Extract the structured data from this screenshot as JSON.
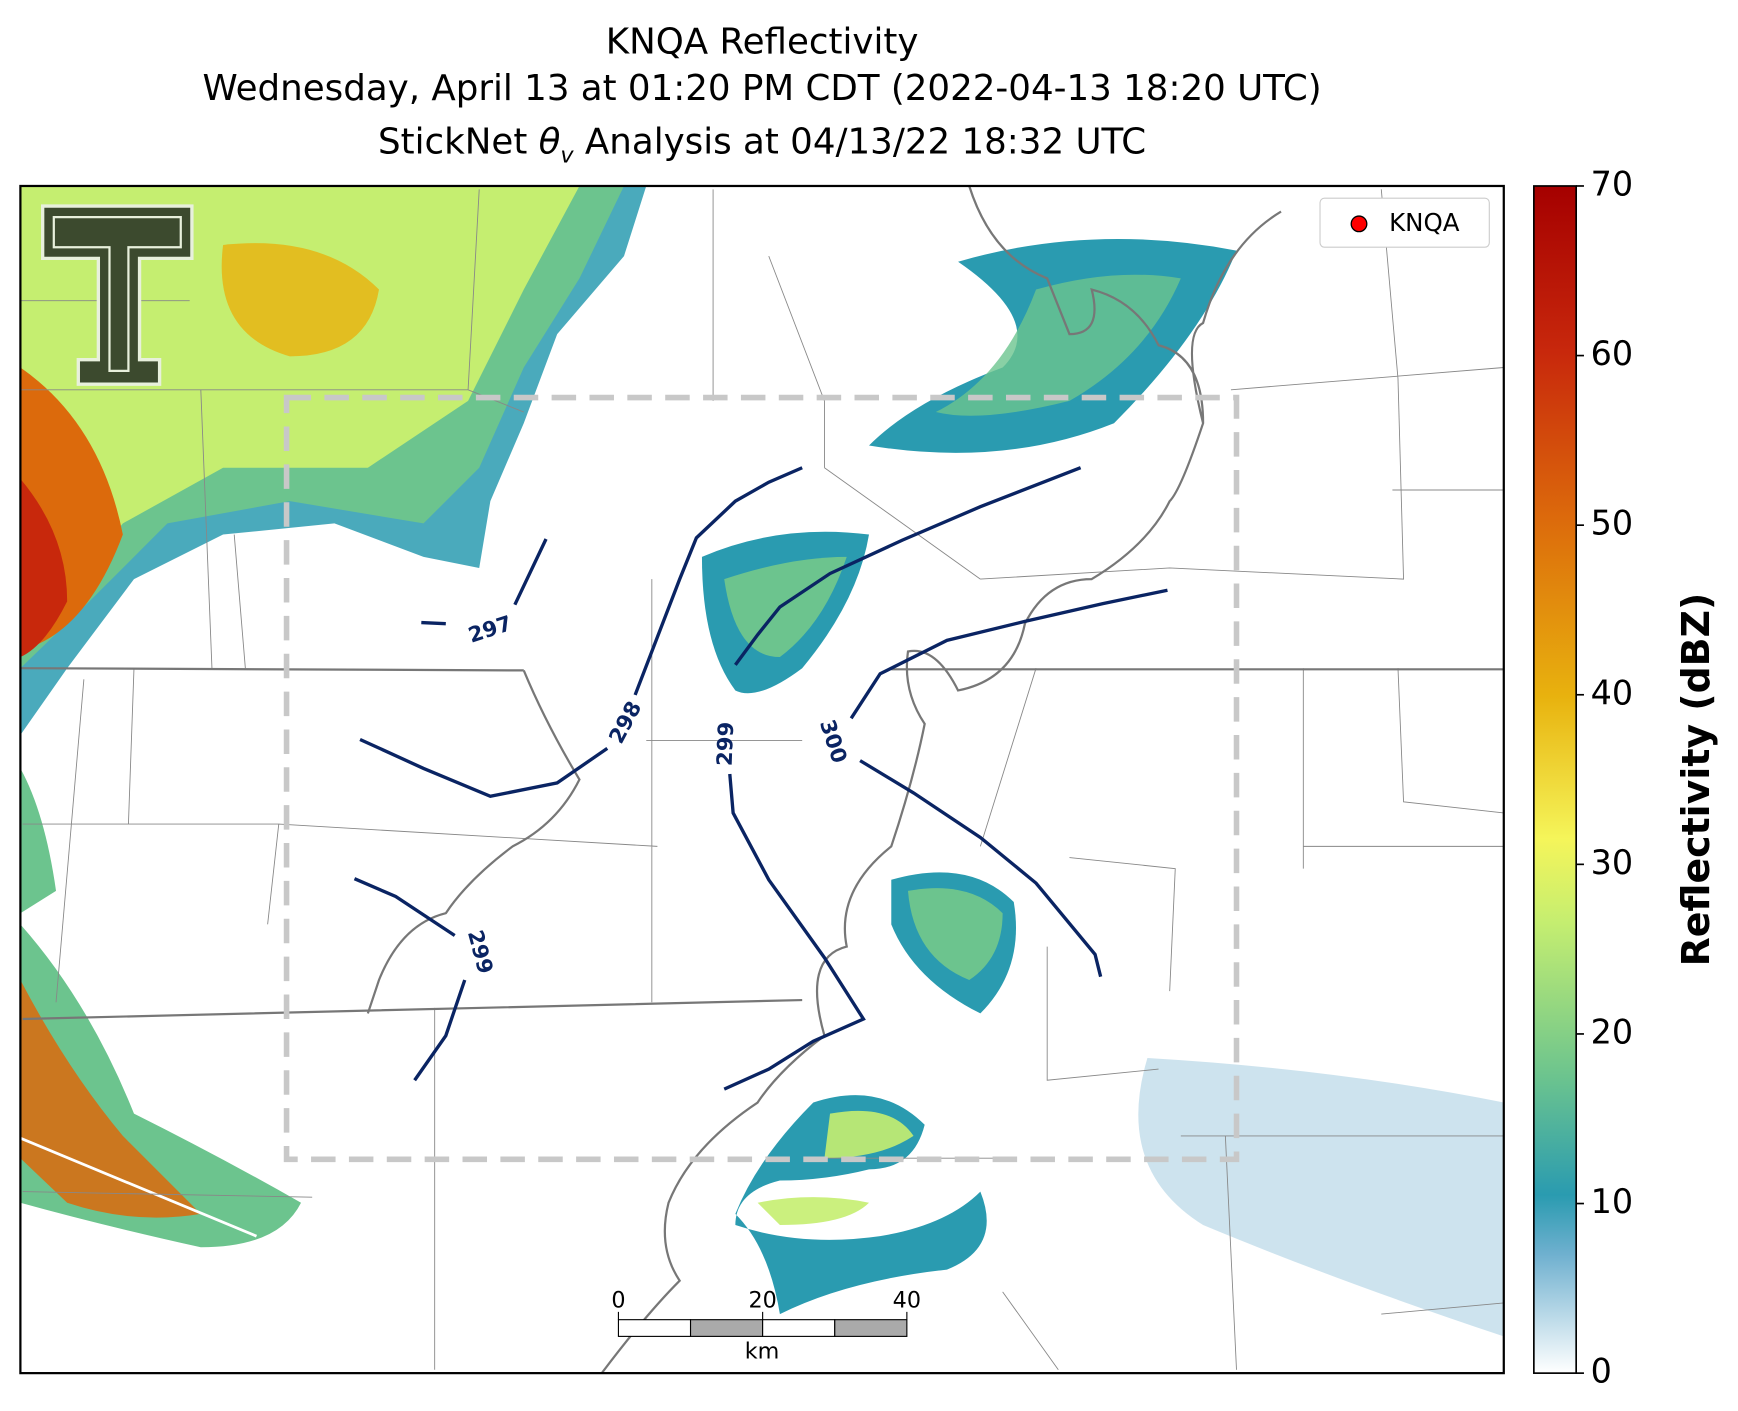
{
  "header": {
    "line1": "KNQA Reflectivity",
    "line2": "Wednesday, April 13 at 01:20 PM CDT (2022-04-13 18:20 UTC)",
    "line3": {
      "before": "StickNet ",
      "symbol": "θ",
      "sub": "v",
      "after": " Analysis at 04/13/22 18:32 UTC"
    }
  },
  "legend": {
    "label": "KNQA",
    "color": "#ff0000"
  },
  "contour_labels": [
    297,
    298,
    299,
    300,
    299
  ],
  "scale_bar": {
    "ticks": [
      0,
      20,
      40
    ],
    "unit": "km"
  },
  "colorbar": {
    "label": "Reflectivity (dBZ)",
    "lim": [
      0,
      70
    ],
    "ticks": [
      0,
      10,
      20,
      30,
      40,
      50,
      60,
      70
    ]
  }
}
